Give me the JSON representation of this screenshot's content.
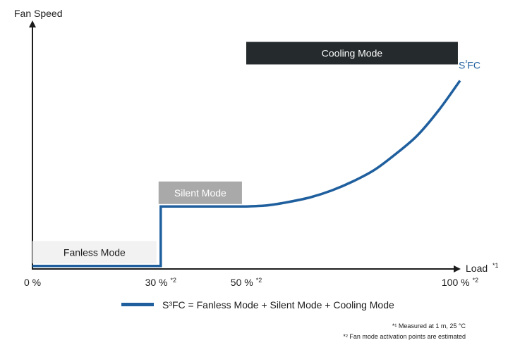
{
  "chart_data": {
    "type": "line",
    "ylabel": "Fan Speed",
    "xlabel": "Load",
    "xlabel_note": "*1",
    "xlim": [
      0,
      100
    ],
    "ylim": [
      0,
      100
    ],
    "x_ticks": [
      {
        "value": 0,
        "label": "0 %",
        "note": ""
      },
      {
        "value": 30,
        "label": "30 %",
        "note": "*2"
      },
      {
        "value": 50,
        "label": "50 %",
        "note": "*2"
      },
      {
        "value": 100,
        "label": "100 %",
        "note": "*2"
      }
    ],
    "series": [
      {
        "name": "S³FC",
        "color": "#1f5f9e",
        "x": [
          0,
          29.7,
          30,
          30,
          50,
          55,
          60,
          65,
          70,
          75,
          80,
          85,
          90,
          95,
          100
        ],
        "y": [
          1,
          1,
          1,
          27,
          27,
          27.5,
          29,
          31,
          34,
          38,
          43,
          50,
          58,
          69,
          82
        ]
      }
    ],
    "legend": {
      "position": "bottom",
      "text": "S³FC = Fanless Mode + Silent Mode + Cooling Mode"
    },
    "annotations": [
      {
        "label": "Fanless Mode",
        "x_start": 0,
        "x_end": 29,
        "y": 7,
        "fill": "#f2f2f2",
        "text_color": "#1c1c1c"
      },
      {
        "label": "Silent Mode",
        "x_start": 29.5,
        "x_end": 49,
        "y": 33,
        "fill": "#a9a9a9",
        "text_color": "#ffffff"
      },
      {
        "label": "Cooling Mode",
        "x_start": 50,
        "x_end": 99.5,
        "y": 94,
        "fill": "#252a2c",
        "text_color": "#ffffff"
      }
    ],
    "footnotes": [
      "*¹ Measured at 1 m, 25 °C",
      "*² Fan mode activation points are estimated"
    ],
    "grid": false
  }
}
